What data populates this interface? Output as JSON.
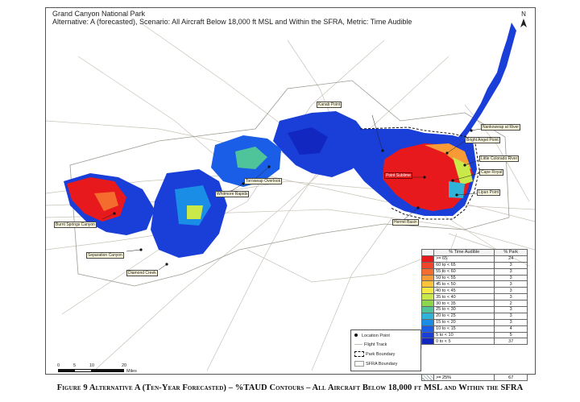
{
  "map": {
    "title_line1": "Grand Canyon National Park",
    "title_line2": "Alternative: A (forecasted), Scenario: All Aircraft Below 18,000 ft MSL and Within the SFRA, Metric: Time Audible",
    "north_label": "N"
  },
  "labels": {
    "kanab_point": "Kanab Point",
    "nankoweap": "Nankoweap at River",
    "bright_angel": "Bright Angel Point",
    "little_colorado": "Little Colorado River",
    "cape_royal": "Cape Royal",
    "point_sublime": "Point Sublime",
    "lipan_point": "Lipan Point",
    "hermit_basin": "Hermit Basin",
    "toroweap": "Toroweap Overlook",
    "whitmore": "Whitmore Rapids",
    "burnt_springs": "Burnt Springs Canyon",
    "separation": "Separation Canyon",
    "diamond_creek": "Diamond Creek"
  },
  "legend": {
    "header_range": "% Time Audible",
    "header_park": "% Park",
    "rows": [
      {
        "range": ">= 65",
        "park": "24",
        "color": "#e8191c"
      },
      {
        "range": "60 to < 65",
        "park": "3",
        "color": "#f0452a"
      },
      {
        "range": "55 to < 60",
        "park": "3",
        "color": "#f46d2f"
      },
      {
        "range": "50 to < 55",
        "park": "3",
        "color": "#f89a35"
      },
      {
        "range": "45 to < 50",
        "park": "3",
        "color": "#fbc43b"
      },
      {
        "range": "40 to < 45",
        "park": "3",
        "color": "#f5ea44"
      },
      {
        "range": "35 to < 40",
        "park": "3",
        "color": "#c9e84a"
      },
      {
        "range": "30 to < 35",
        "park": "2",
        "color": "#8ed64e"
      },
      {
        "range": "25 to < 30",
        "park": "3",
        "color": "#4fc39a"
      },
      {
        "range": "20 to < 25",
        "park": "3",
        "color": "#2fb3d8"
      },
      {
        "range": "15 to < 20",
        "park": "3",
        "color": "#1a8ee6"
      },
      {
        "range": "10 to < 15",
        "park": "4",
        "color": "#1a5ee8"
      },
      {
        "range": "5 to < 10",
        "park": "5",
        "color": "#1a3ed8"
      },
      {
        "range": "0 to < 5",
        "park": "37",
        "color": "#1226c0"
      }
    ],
    "hatch_label": ">= 25%",
    "hatch_value": "67"
  },
  "key": {
    "location_point": "Location Point",
    "flight_track": "Flight Track",
    "park_boundary": "Park Boundary",
    "sfra_boundary": "SFRA Boundary"
  },
  "scale": {
    "t0": "0",
    "t5": "5",
    "t10": "10",
    "t20": "20",
    "unit": "Miles"
  },
  "caption": "Figure 9 Alternative A (Ten-Year Forecasted) – %TAUD Contours – All Aircraft Below 18,000 ft MSL and Within the SFRA"
}
